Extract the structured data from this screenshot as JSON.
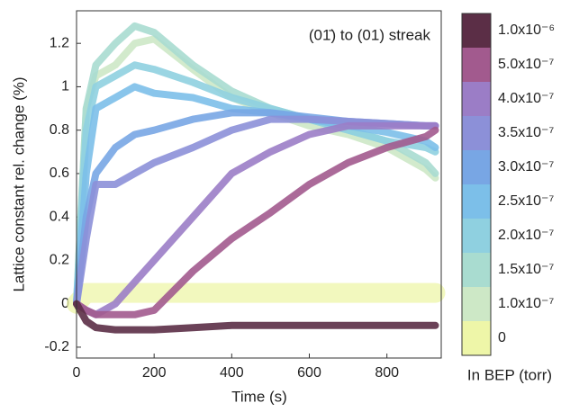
{
  "chart_data": {
    "type": "line",
    "annotation": "(01̄) to (01) streak",
    "x_label": "Time (s)",
    "y_label": "Lattice constant rel. change (%)",
    "legend_title": "In BEP (torr)",
    "x": [
      0,
      25,
      50,
      100,
      150,
      200,
      300,
      400,
      500,
      600,
      700,
      800,
      900,
      925
    ],
    "xlim": [
      0,
      940
    ],
    "xticks": [
      0,
      200,
      400,
      600,
      800
    ],
    "ylim": [
      -0.25,
      1.35
    ],
    "yticks": [
      -0.2,
      0,
      0.2,
      0.4,
      0.6,
      0.8,
      1,
      1.2
    ],
    "series": [
      {
        "name": "1.0x10⁻⁶",
        "color": "#5b2e46",
        "values": [
          0,
          -0.08,
          -0.11,
          -0.12,
          -0.12,
          -0.12,
          -0.11,
          -0.1,
          -0.1,
          -0.1,
          -0.1,
          -0.1,
          -0.1,
          -0.1
        ]
      },
      {
        "name": "5.0x10⁻⁷",
        "color": "#a25a8e",
        "values": [
          0,
          -0.03,
          -0.05,
          -0.05,
          -0.05,
          -0.03,
          0.15,
          0.3,
          0.42,
          0.55,
          0.65,
          0.72,
          0.77,
          0.8
        ]
      },
      {
        "name": "4.0x10⁻⁷",
        "color": "#9b7dc6",
        "values": [
          0,
          -0.03,
          -0.05,
          0,
          0.1,
          0.2,
          0.4,
          0.6,
          0.7,
          0.78,
          0.82,
          0.82,
          0.82,
          0.82
        ]
      },
      {
        "name": "3.5x10⁻⁷",
        "color": "#8c90d8",
        "values": [
          0,
          0.3,
          0.55,
          0.55,
          0.6,
          0.65,
          0.72,
          0.8,
          0.85,
          0.85,
          0.84,
          0.83,
          0.82,
          0.82
        ]
      },
      {
        "name": "3.0x10⁻⁷",
        "color": "#78a6e4",
        "values": [
          0,
          0.4,
          0.6,
          0.72,
          0.78,
          0.8,
          0.85,
          0.88,
          0.88,
          0.86,
          0.84,
          0.83,
          0.82,
          0.82
        ]
      },
      {
        "name": "2.5x10⁻⁷",
        "color": "#7cbfe9",
        "values": [
          0,
          0.6,
          0.9,
          0.95,
          1.0,
          0.97,
          0.95,
          0.9,
          0.88,
          0.85,
          0.82,
          0.79,
          0.75,
          0.72
        ]
      },
      {
        "name": "2.0x10⁻⁷",
        "color": "#8fd0e0",
        "values": [
          0,
          0.8,
          1.0,
          1.05,
          1.1,
          1.08,
          1.02,
          0.95,
          0.9,
          0.85,
          0.8,
          0.75,
          0.72,
          0.7
        ]
      },
      {
        "name": "1.5x10⁻⁷",
        "color": "#a9dcd0",
        "values": [
          0,
          0.9,
          1.1,
          1.2,
          1.28,
          1.25,
          1.1,
          0.98,
          0.9,
          0.85,
          0.8,
          0.75,
          0.65,
          0.6
        ]
      },
      {
        "name": "1.0x10⁻⁷",
        "color": "#cde8c6",
        "values": [
          0,
          0.9,
          1.05,
          1.1,
          1.2,
          1.22,
          1.08,
          0.95,
          0.88,
          0.82,
          0.78,
          0.72,
          0.62,
          0.58
        ]
      },
      {
        "name": "0",
        "color": "#eef6a8",
        "values": [
          0,
          0.05,
          0.05,
          0.05,
          0.05,
          0.05,
          0.05,
          0.05,
          0.05,
          0.05,
          0.05,
          0.05,
          0.05,
          0.05
        ]
      }
    ]
  }
}
